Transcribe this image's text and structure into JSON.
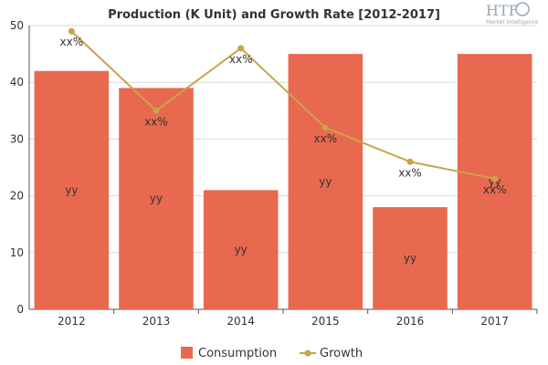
{
  "chart_data": {
    "type": "bar",
    "title": "Production (K Unit) and Growth Rate [2012-2017]",
    "categories": [
      "2012",
      "2013",
      "2014",
      "2015",
      "2016",
      "2017"
    ],
    "ylim": [
      0,
      50
    ],
    "yticks": [
      0,
      10,
      20,
      30,
      40,
      50
    ],
    "grid": "horizontal",
    "legend_position": "bottom",
    "series": [
      {
        "name": "Consumption",
        "type": "bar",
        "values": [
          42,
          39,
          21,
          45,
          18,
          45
        ],
        "color": "#e8694f",
        "labels": [
          "yy",
          "yy",
          "yy",
          "yy",
          "yy",
          "yy"
        ]
      },
      {
        "name": "Growth",
        "type": "line",
        "values": [
          49,
          35,
          46,
          32,
          26,
          23
        ],
        "color": "#c8a44a",
        "labels": [
          "xx%",
          "xx%",
          "xx%",
          "xx%",
          "xx%",
          "xx%"
        ]
      }
    ]
  },
  "logo": {
    "text": "HTF",
    "subtext": "Market Intelligence"
  }
}
